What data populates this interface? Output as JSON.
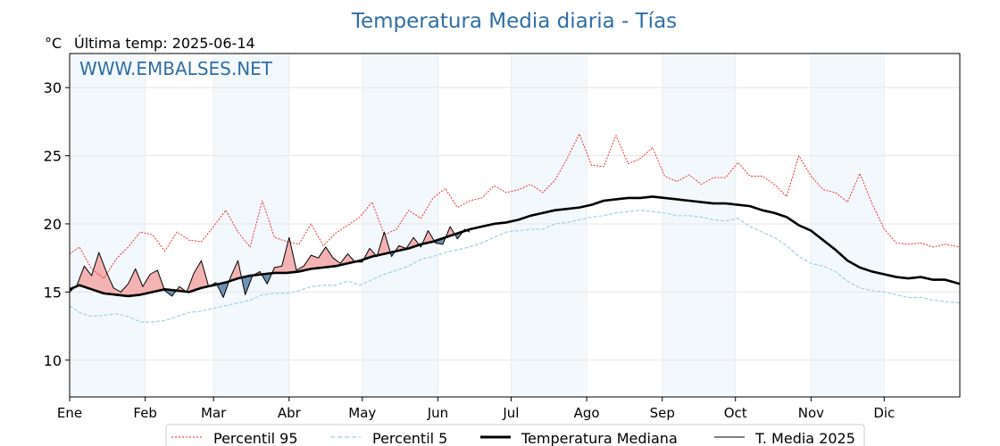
{
  "title": "Temperatura Media diaria - Tías",
  "unit": "°C",
  "last_temp_label": "Última temp: 2025-06-14",
  "watermark": "WWW.EMBALSES.NET",
  "colors": {
    "title": "#2f6ea5",
    "p95": "#e8201c",
    "p5": "#9fcfe0",
    "median": "#000000",
    "current": "#000000",
    "above_fill": "#f4b3b3",
    "below_fill": "#6f93b5",
    "band": "#f3f8fd"
  },
  "chart_data": {
    "type": "line",
    "title": "Temperatura Media diaria - Tías",
    "ylabel": "°C",
    "xlabel": "",
    "ylim": [
      7.3,
      32.5
    ],
    "xlim": [
      1,
      366
    ],
    "y_ticks": [
      10,
      15,
      20,
      25,
      30
    ],
    "month_labels": [
      "Ene",
      "Feb",
      "Mar",
      "Abr",
      "May",
      "Jun",
      "Jul",
      "Ago",
      "Sep",
      "Oct",
      "Nov",
      "Dic"
    ],
    "month_start_days": [
      1,
      32,
      60,
      91,
      121,
      152,
      182,
      213,
      244,
      274,
      305,
      335
    ],
    "grid": true,
    "legend_position": "bottom",
    "series": [
      {
        "name": "Percentil 95",
        "style": "dotted",
        "x": [
          1,
          5,
          10,
          15,
          20,
          25,
          30,
          35,
          40,
          45,
          50,
          55,
          60,
          65,
          70,
          75,
          80,
          85,
          90,
          95,
          100,
          105,
          110,
          115,
          120,
          125,
          130,
          135,
          140,
          145,
          150,
          155,
          160,
          165,
          170,
          175,
          180,
          185,
          190,
          195,
          200,
          205,
          210,
          215,
          220,
          225,
          230,
          235,
          240,
          245,
          250,
          255,
          260,
          265,
          270,
          275,
          280,
          285,
          290,
          295,
          300,
          305,
          310,
          315,
          320,
          325,
          330,
          335,
          340,
          345,
          350,
          355,
          360,
          366
        ],
        "values": [
          17.8,
          18.3,
          16.7,
          16.0,
          17.4,
          18.3,
          19.4,
          19.2,
          18.0,
          19.4,
          18.8,
          18.7,
          19.8,
          21.0,
          19.4,
          18.3,
          21.7,
          19.0,
          18.7,
          18.5,
          20.0,
          18.4,
          19.3,
          19.9,
          20.5,
          21.6,
          19.2,
          19.6,
          21.0,
          20.4,
          21.9,
          22.6,
          21.2,
          21.7,
          21.9,
          22.8,
          22.3,
          22.5,
          22.9,
          22.3,
          23.2,
          24.8,
          26.6,
          24.3,
          24.2,
          26.5,
          24.4,
          24.8,
          25.6,
          23.5,
          23.1,
          23.6,
          22.9,
          23.4,
          23.4,
          24.5,
          23.5,
          23.5,
          22.9,
          22.0,
          25.0,
          23.5,
          22.5,
          22.3,
          21.6,
          23.7,
          21.5,
          19.6,
          18.6,
          18.5,
          18.6,
          18.3,
          18.5,
          18.3
        ]
      },
      {
        "name": "Percentil 5",
        "style": "dashed",
        "x": [
          1,
          5,
          10,
          15,
          20,
          25,
          30,
          35,
          40,
          45,
          50,
          55,
          60,
          65,
          70,
          75,
          80,
          85,
          90,
          95,
          100,
          105,
          110,
          115,
          120,
          125,
          130,
          135,
          140,
          145,
          150,
          155,
          160,
          165,
          170,
          175,
          180,
          185,
          190,
          195,
          200,
          205,
          210,
          215,
          220,
          225,
          230,
          235,
          240,
          245,
          250,
          255,
          260,
          265,
          270,
          275,
          280,
          285,
          290,
          295,
          300,
          305,
          310,
          315,
          320,
          325,
          330,
          335,
          340,
          345,
          350,
          355,
          360,
          366
        ],
        "values": [
          14.0,
          13.5,
          13.2,
          13.3,
          13.4,
          13.2,
          12.8,
          12.8,
          12.9,
          13.2,
          13.5,
          13.6,
          13.8,
          14.0,
          14.2,
          14.4,
          14.8,
          14.9,
          14.9,
          15.1,
          15.4,
          15.5,
          15.5,
          15.8,
          15.5,
          15.9,
          16.3,
          16.6,
          16.9,
          17.4,
          17.6,
          17.9,
          18.1,
          18.3,
          18.6,
          19.0,
          19.4,
          19.5,
          19.6,
          19.6,
          20.0,
          20.1,
          20.3,
          20.5,
          20.6,
          20.8,
          20.9,
          21.0,
          20.9,
          20.8,
          20.6,
          20.6,
          20.5,
          20.3,
          20.2,
          20.4,
          19.8,
          19.4,
          19.0,
          18.4,
          17.6,
          17.1,
          16.9,
          16.5,
          15.8,
          15.3,
          15.1,
          15.0,
          14.8,
          14.6,
          14.6,
          14.4,
          14.3,
          14.2
        ]
      },
      {
        "name": "Temperatura Mediana",
        "style": "solid-bold",
        "x": [
          1,
          5,
          10,
          15,
          20,
          25,
          30,
          35,
          40,
          45,
          50,
          55,
          60,
          65,
          70,
          75,
          80,
          85,
          90,
          95,
          100,
          105,
          110,
          115,
          120,
          125,
          130,
          135,
          140,
          145,
          150,
          155,
          160,
          165,
          170,
          175,
          180,
          185,
          190,
          195,
          200,
          205,
          210,
          215,
          220,
          225,
          230,
          235,
          240,
          245,
          250,
          255,
          260,
          265,
          270,
          275,
          280,
          285,
          290,
          295,
          300,
          305,
          310,
          315,
          320,
          325,
          330,
          335,
          340,
          345,
          350,
          355,
          360,
          366
        ],
        "values": [
          15.2,
          15.5,
          15.2,
          14.9,
          14.8,
          14.7,
          14.8,
          15.0,
          15.2,
          15.1,
          15.0,
          15.3,
          15.5,
          15.7,
          16.0,
          16.2,
          16.3,
          16.4,
          16.4,
          16.5,
          16.7,
          16.8,
          16.9,
          17.1,
          17.3,
          17.6,
          17.8,
          18.0,
          18.2,
          18.5,
          18.7,
          19.0,
          19.3,
          19.6,
          19.8,
          20.0,
          20.1,
          20.3,
          20.6,
          20.8,
          21.0,
          21.1,
          21.2,
          21.4,
          21.7,
          21.8,
          21.9,
          21.9,
          22.0,
          21.9,
          21.8,
          21.7,
          21.6,
          21.5,
          21.5,
          21.4,
          21.3,
          21.0,
          20.8,
          20.5,
          19.9,
          19.5,
          18.8,
          18.1,
          17.3,
          16.8,
          16.5,
          16.3,
          16.1,
          16.0,
          16.1,
          15.9,
          15.9,
          15.6
        ]
      },
      {
        "name": "T. Media 2025",
        "style": "solid-thin",
        "x": [
          1,
          4,
          7,
          10,
          13,
          16,
          19,
          22,
          25,
          28,
          31,
          34,
          37,
          40,
          43,
          46,
          49,
          52,
          55,
          58,
          61,
          64,
          67,
          70,
          73,
          76,
          79,
          82,
          85,
          88,
          91,
          94,
          97,
          100,
          103,
          106,
          109,
          112,
          115,
          118,
          121,
          124,
          127,
          130,
          133,
          136,
          139,
          142,
          145,
          148,
          151,
          154,
          157,
          160,
          163,
          165
        ],
        "values": [
          15.0,
          15.5,
          16.9,
          16.2,
          17.9,
          16.5,
          15.3,
          15.0,
          15.6,
          16.7,
          15.4,
          16.3,
          16.6,
          15.1,
          14.7,
          15.4,
          15.0,
          16.4,
          17.3,
          15.4,
          15.7,
          14.6,
          16.1,
          17.3,
          14.8,
          16.2,
          16.5,
          15.6,
          16.8,
          16.9,
          19.0,
          16.6,
          16.9,
          17.7,
          17.5,
          18.3,
          17.5,
          17.1,
          17.8,
          17.2,
          17.2,
          18.2,
          17.6,
          19.4,
          17.6,
          18.4,
          18.2,
          19.0,
          18.3,
          19.5,
          18.6,
          18.5,
          19.8,
          18.9,
          19.6,
          19.4
        ]
      }
    ]
  }
}
